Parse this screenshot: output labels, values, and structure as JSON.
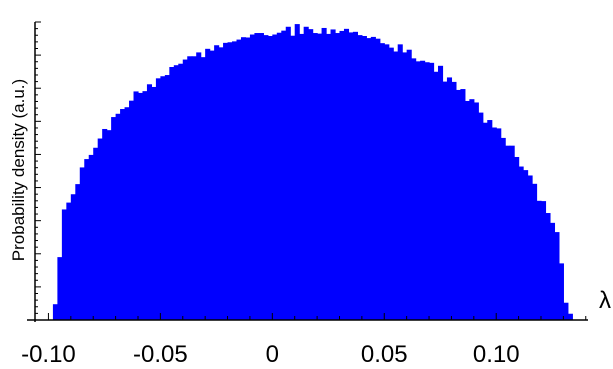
{
  "chart_data": {
    "type": "bar",
    "title": "",
    "xlabel": "λ",
    "ylabel": "Probability density (a.u.)",
    "xlim": [
      -0.106,
      0.141
    ],
    "ylim": [
      0,
      1.0
    ],
    "x_ticks": [
      -0.1,
      -0.05,
      0.0,
      0.05,
      0.1
    ],
    "x_tick_labels": [
      "-0.10",
      "-0.05",
      "0",
      "0.05",
      "0.10"
    ],
    "y_ticks_labeled": false,
    "grid": false,
    "legend": "none",
    "bar_color": "#0000ff",
    "distribution": "semicircle histogram",
    "bin_width": 0.002,
    "x_range": [
      -0.098,
      0.134
    ],
    "bins_x": [
      -0.097,
      -0.095,
      -0.093,
      -0.091,
      -0.089,
      -0.087,
      -0.085,
      -0.083,
      -0.081,
      -0.079,
      -0.077,
      -0.075,
      -0.073,
      -0.071,
      -0.069,
      -0.067,
      -0.065,
      -0.063,
      -0.061,
      -0.059,
      -0.057,
      -0.055,
      -0.053,
      -0.051,
      -0.049,
      -0.047,
      -0.045,
      -0.043,
      -0.041,
      -0.039,
      -0.037,
      -0.035,
      -0.033,
      -0.031,
      -0.029,
      -0.027,
      -0.025,
      -0.023,
      -0.021,
      -0.019,
      -0.017,
      -0.015,
      -0.013,
      -0.011,
      -0.009,
      -0.007,
      -0.005,
      -0.003,
      -0.001,
      0.001,
      0.003,
      0.005,
      0.007,
      0.009,
      0.011,
      0.013,
      0.015,
      0.017,
      0.019,
      0.021,
      0.023,
      0.025,
      0.027,
      0.029,
      0.031,
      0.033,
      0.035,
      0.037,
      0.039,
      0.041,
      0.043,
      0.045,
      0.047,
      0.049,
      0.051,
      0.053,
      0.055,
      0.057,
      0.059,
      0.061,
      0.063,
      0.065,
      0.067,
      0.069,
      0.071,
      0.073,
      0.075,
      0.077,
      0.079,
      0.081,
      0.083,
      0.085,
      0.087,
      0.089,
      0.091,
      0.093,
      0.095,
      0.097,
      0.099,
      0.101,
      0.103,
      0.105,
      0.107,
      0.109,
      0.111,
      0.113,
      0.115,
      0.117,
      0.119,
      0.121,
      0.123,
      0.125,
      0.127,
      0.129,
      0.131,
      0.133
    ],
    "bins_y": [
      0.053,
      0.211,
      0.371,
      0.394,
      0.422,
      0.456,
      0.512,
      0.54,
      0.554,
      0.578,
      0.609,
      0.641,
      0.637,
      0.681,
      0.692,
      0.708,
      0.714,
      0.736,
      0.767,
      0.762,
      0.768,
      0.791,
      0.782,
      0.811,
      0.818,
      0.822,
      0.849,
      0.855,
      0.86,
      0.874,
      0.885,
      0.885,
      0.898,
      0.882,
      0.91,
      0.904,
      0.922,
      0.915,
      0.93,
      0.932,
      0.935,
      0.941,
      0.949,
      0.948,
      0.958,
      0.963,
      0.963,
      0.956,
      0.953,
      0.958,
      0.964,
      0.971,
      0.984,
      0.954,
      0.993,
      0.96,
      0.984,
      0.976,
      0.963,
      0.961,
      0.98,
      0.96,
      0.975,
      0.963,
      0.97,
      0.977,
      0.965,
      0.967,
      0.956,
      0.953,
      0.946,
      0.95,
      0.944,
      0.929,
      0.925,
      0.914,
      0.901,
      0.925,
      0.898,
      0.907,
      0.878,
      0.868,
      0.87,
      0.865,
      0.863,
      0.833,
      0.853,
      0.8,
      0.814,
      0.799,
      0.772,
      0.775,
      0.735,
      0.741,
      0.73,
      0.696,
      0.662,
      0.671,
      0.646,
      0.643,
      0.611,
      0.585,
      0.585,
      0.547,
      0.515,
      0.503,
      0.485,
      0.457,
      0.4,
      0.399,
      0.359,
      0.326,
      0.295,
      0.19,
      0.058,
      0.021
    ]
  }
}
